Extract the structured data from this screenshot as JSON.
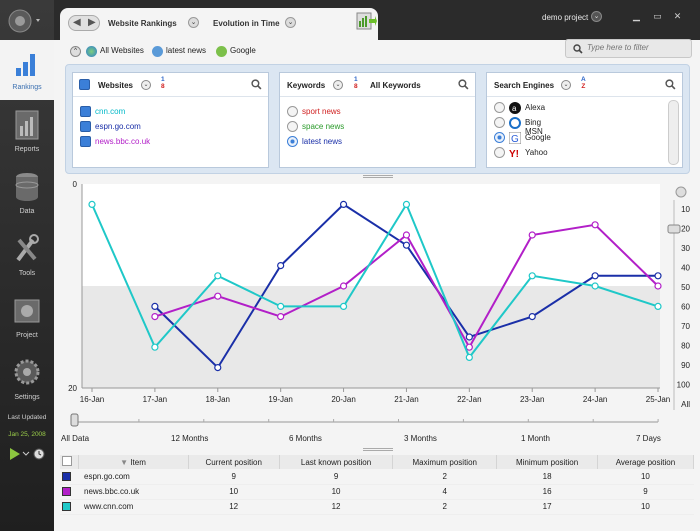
{
  "sidebar": {
    "items": [
      {
        "label": "Rankings",
        "icon": "bar-chart-icon",
        "active": true
      },
      {
        "label": "Reports",
        "icon": "report-icon",
        "active": false
      },
      {
        "label": "Data",
        "icon": "database-icon",
        "active": false
      },
      {
        "label": "Tools",
        "icon": "tools-icon",
        "active": false
      },
      {
        "label": "Project",
        "icon": "project-icon",
        "active": false
      },
      {
        "label": "Settings",
        "icon": "gear-icon",
        "active": false
      }
    ],
    "last_updated_label": "Last Updated",
    "last_updated_date": "Jan 25, 2008"
  },
  "header": {
    "breadcrumb_1": "Website Rankings",
    "breadcrumb_2": "Evolution in Time",
    "project": "demo project"
  },
  "filters": {
    "tabs": [
      {
        "label": "All Websites",
        "icon": "globe-icon"
      },
      {
        "label": "latest news",
        "icon": "keyword-icon"
      },
      {
        "label": "Google",
        "icon": "google-icon"
      }
    ],
    "search_placeholder": "Type here to filter"
  },
  "panels": {
    "websites": {
      "title": "Websites",
      "sort_top": "1",
      "sort_bottom": "8",
      "items": [
        {
          "label": "cnn.com",
          "color": "#00b8c8"
        },
        {
          "label": "espn.go.com",
          "color": "#1a2fa8"
        },
        {
          "label": "news.bbc.co.uk",
          "color": "#b21fc8"
        }
      ]
    },
    "keywords": {
      "title": "Keywords",
      "sort_top": "1",
      "sort_bottom": "8",
      "all_label": "All Keywords",
      "items": [
        {
          "label": "sport news",
          "color": "#d02020",
          "selected": false
        },
        {
          "label": "space news",
          "color": "#2a9a2a",
          "selected": false
        },
        {
          "label": "latest news",
          "color": "#1a2fa8",
          "selected": true
        }
      ]
    },
    "engines": {
      "title": "Search Engines",
      "sort_top": "A",
      "sort_bottom": "Z",
      "items": [
        {
          "label": "Alexa",
          "icon": "alexa-icon",
          "selected": false
        },
        {
          "label": "Bing MSN",
          "icon": "msn-icon",
          "selected": false
        },
        {
          "label": "Google",
          "icon": "google-icon",
          "selected": true
        },
        {
          "label": "Yahoo",
          "icon": "yahoo-icon",
          "selected": false
        }
      ]
    }
  },
  "chart_data": {
    "type": "line",
    "left_axis": {
      "ticks": [
        "0",
        "20"
      ]
    },
    "right_axis": {
      "ticks": [
        "10",
        "20",
        "30",
        "40",
        "50",
        "60",
        "70",
        "80",
        "90",
        "100",
        "All"
      ]
    },
    "categories": [
      "16-Jan",
      "17-Jan",
      "18-Jan",
      "19-Jan",
      "20-Jan",
      "21-Jan",
      "22-Jan",
      "23-Jan",
      "24-Jan",
      "25-Jan"
    ],
    "ylim": [
      0,
      20
    ],
    "inverted": true,
    "shaded_band": [
      10,
      20
    ],
    "series": [
      {
        "name": "espn.go.com",
        "color": "#1a2fa8",
        "values": [
          null,
          12,
          18,
          8,
          2,
          6,
          15,
          13,
          9,
          9
        ]
      },
      {
        "name": "news.bbc.co.uk",
        "color": "#b21fc8",
        "values": [
          null,
          13,
          11,
          13,
          10,
          5,
          16,
          5,
          4,
          10
        ]
      },
      {
        "name": "www.cnn.com",
        "color": "#1fc8c8",
        "values": [
          2,
          16,
          9,
          12,
          12,
          2,
          17,
          9,
          10,
          12
        ]
      }
    ]
  },
  "zoom": {
    "labels": [
      "All Data",
      "12 Months",
      "6 Months",
      "3 Months",
      "1 Month",
      "7 Days"
    ]
  },
  "table": {
    "columns": [
      "Item",
      "Current position",
      "Last known position",
      "Maximum position",
      "Minimum position",
      "Average position"
    ],
    "rows": [
      {
        "color": "#1a2fa8",
        "item": "espn.go.com",
        "current": "9",
        "last": "9",
        "max": "2",
        "min": "18",
        "avg": "10"
      },
      {
        "color": "#b21fc8",
        "item": "news.bbc.co.uk",
        "current": "10",
        "last": "10",
        "max": "4",
        "min": "16",
        "avg": "9"
      },
      {
        "color": "#1fc8c8",
        "item": "www.cnn.com",
        "current": "12",
        "last": "12",
        "max": "2",
        "min": "17",
        "avg": "10"
      }
    ]
  }
}
